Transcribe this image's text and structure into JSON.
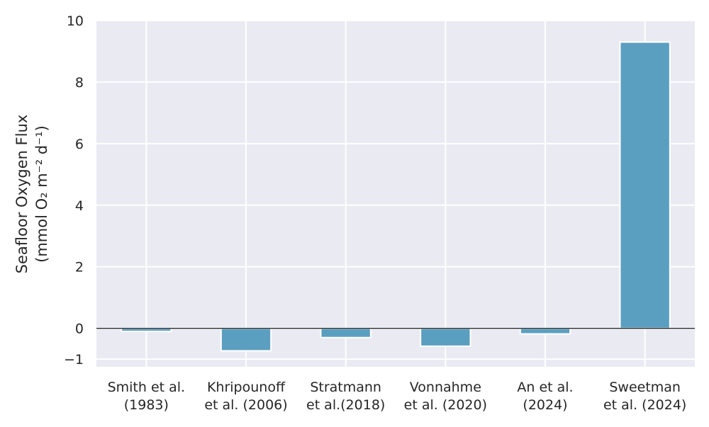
{
  "chart_data": {
    "type": "bar",
    "categories": [
      [
        "Smith et al.",
        "(1983)"
      ],
      [
        "Khripounoff",
        "et al. (2006)"
      ],
      [
        "Stratmann",
        "et al.(2018)"
      ],
      [
        "Vonnahme",
        "et al. (2020)"
      ],
      [
        "An et al.",
        "(2024)"
      ],
      [
        "Sweetman",
        "et al. (2024)"
      ]
    ],
    "values": [
      -0.1,
      -0.73,
      -0.3,
      -0.58,
      -0.18,
      9.3
    ],
    "ylabel_line1": "Seafloor Oxygen Flux",
    "ylabel_line2": "(mmol O₂ m⁻² d⁻¹)",
    "ylim": [
      -1.25,
      10
    ],
    "yticks": [
      -1,
      0,
      2,
      4,
      6,
      8,
      10
    ],
    "ytick_labels": [
      "−1",
      "0",
      "2",
      "4",
      "6",
      "8",
      "10"
    ],
    "grid": true,
    "zero_line": true,
    "colors": {
      "bar": "#5b9fc0",
      "background": "#eaeaf2",
      "grid": "#ffffff",
      "zero_line": "#000000",
      "text": "#262626"
    }
  }
}
